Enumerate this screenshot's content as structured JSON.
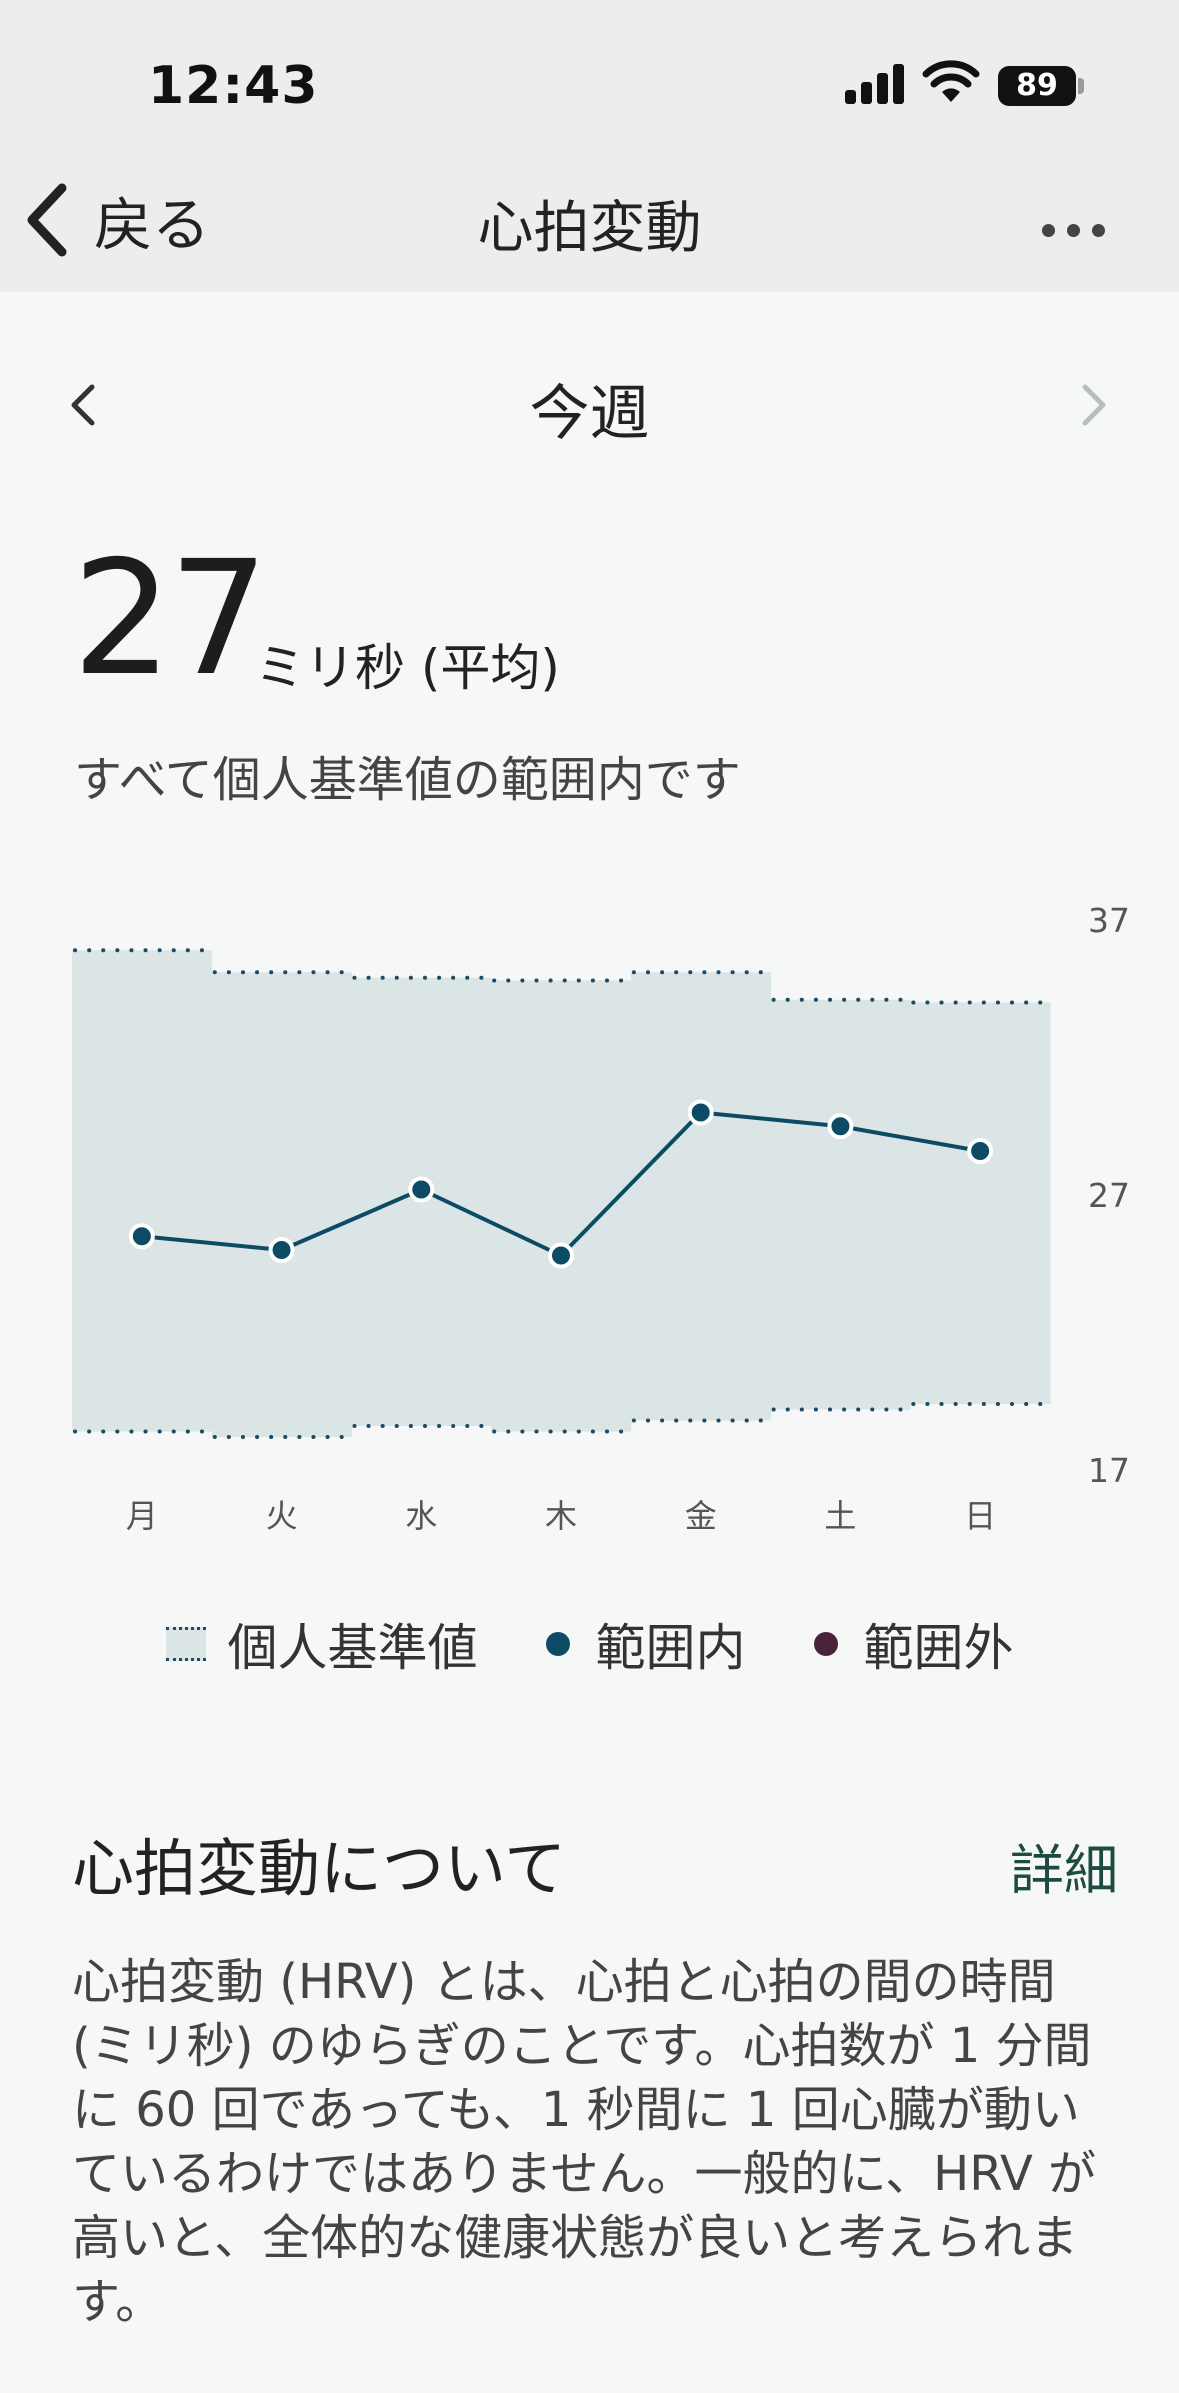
{
  "status_bar": {
    "time": "12:43",
    "battery": "89"
  },
  "nav": {
    "back_label": "戻る",
    "title": "心拍変動"
  },
  "period": {
    "label": "今週"
  },
  "summary": {
    "value": "27",
    "unit": "ミリ秒 (平均)",
    "note": "すべて個人基準値の範囲内です"
  },
  "chart_data": {
    "type": "line",
    "categories": [
      "月",
      "火",
      "水",
      "木",
      "金",
      "土",
      "日"
    ],
    "series": [
      {
        "name": "範囲内",
        "values": [
          25.5,
          25.0,
          27.2,
          24.8,
          30.0,
          29.5,
          28.6
        ]
      }
    ],
    "baseline_band": {
      "name": "個人基準値",
      "upper": [
        35.9,
        35.1,
        34.9,
        34.8,
        35.1,
        34.1,
        34.0
      ],
      "lower": [
        18.4,
        18.2,
        18.6,
        18.4,
        18.8,
        19.2,
        19.4
      ]
    },
    "ylim": [
      17,
      37
    ],
    "yticks": [
      "37",
      "27",
      "17"
    ],
    "colors": {
      "in_range": "#0d4a66",
      "out_of_range": "#4a2338",
      "band": "#dbe5e6",
      "band_border": "#1e4a64"
    }
  },
  "legend": {
    "band": "個人基準値",
    "in_range": "範囲内",
    "out_of_range": "範囲外"
  },
  "about": {
    "title": "心拍変動について",
    "link": "詳細",
    "body": "心拍変動 (HRV) とは、心拍と心拍の間の時間 (ミリ秒) のゆらぎのことです。心拍数が 1 分間に 60 回であっても、1 秒間に 1 回心臓が動いているわけではありません。一般的に、HRV が高いと、全体的な健康状態が良いと考えられます。"
  }
}
